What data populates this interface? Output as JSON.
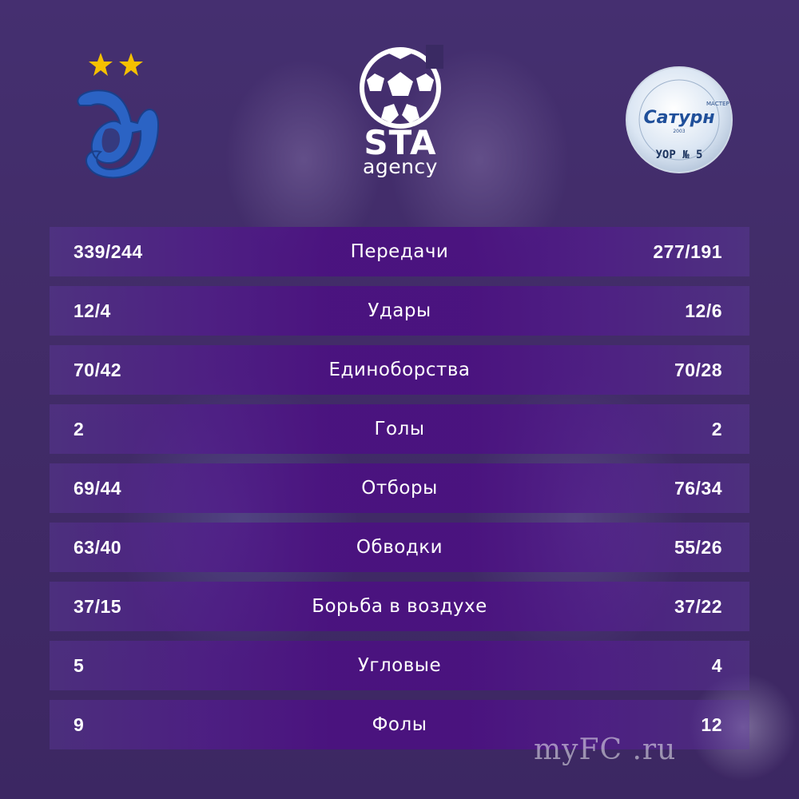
{
  "header": {
    "center_logo_text": "STA",
    "center_logo_subtext": "agency",
    "left_club_logo": "dynamo-logo",
    "right_club_logo": "saturn-uor5-logo",
    "right_logo_texts": {
      "brand": "Сатурн",
      "ring_tag": "МАСТЕР",
      "year": "2003",
      "bottom": "УОР № 5"
    }
  },
  "stats": [
    {
      "left": "339/244",
      "label": "Передачи",
      "right": "277/191"
    },
    {
      "left": "12/4",
      "label": "Удары",
      "right": "12/6"
    },
    {
      "left": "70/42",
      "label": "Единоборства",
      "right": "70/28"
    },
    {
      "left": "2",
      "label": "Голы",
      "right": "2"
    },
    {
      "left": "69/44",
      "label": "Отборы",
      "right": "76/34"
    },
    {
      "left": "63/40",
      "label": "Обводки",
      "right": "55/26"
    },
    {
      "left": "37/15",
      "label": "Борьба в воздухе",
      "right": "37/22"
    },
    {
      "left": "5",
      "label": "Угловые",
      "right": "4"
    },
    {
      "left": "9",
      "label": "Фолы",
      "right": "12"
    }
  ],
  "watermark": "myFC .ru",
  "colors": {
    "row_center": "#4b1280",
    "background": "#3a2a63",
    "star": "#f5c000",
    "dynamo_blue": "#2b63c4",
    "text": "#ffffff"
  }
}
